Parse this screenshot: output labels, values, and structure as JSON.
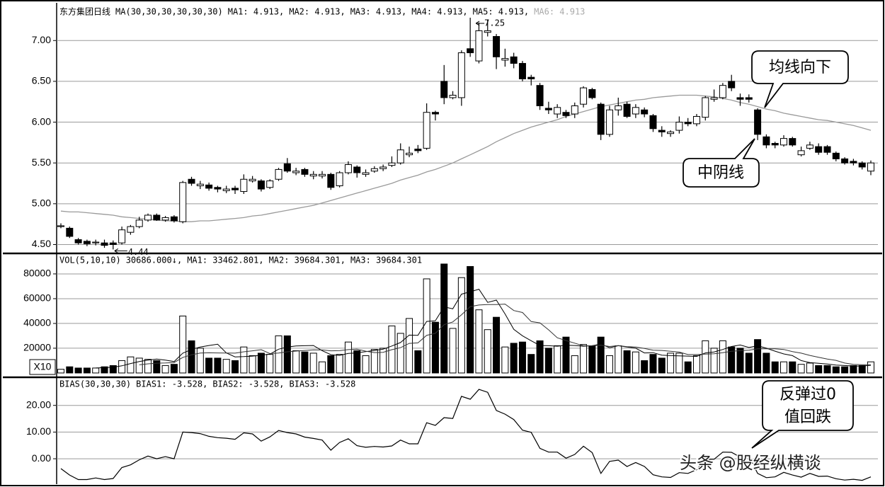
{
  "chart_data": [
    {
      "type": "candlestick",
      "header": [
        "东方集团日线",
        "MA(30,30,30,30,30,30)",
        "MA1: 4.913,",
        "MA2: 4.913,",
        "MA3: 4.913,",
        "MA4: 4.913,",
        "MA5: 4.913,",
        "MA6: 4.913"
      ],
      "open": [
        4.72,
        4.7,
        4.56,
        4.54,
        4.52,
        4.52,
        4.52,
        4.52,
        4.65,
        4.72,
        4.8,
        4.86,
        4.8,
        4.84,
        4.78,
        5.3,
        5.22,
        5.23,
        5.2,
        5.16,
        5.19,
        5.15,
        5.28,
        5.28,
        5.2,
        5.3,
        5.49,
        5.38,
        5.42,
        5.34,
        5.34,
        5.36,
        5.22,
        5.38,
        5.45,
        5.36,
        5.4,
        5.43,
        5.47,
        5.5,
        5.6,
        5.67,
        5.68,
        6.12,
        6.5,
        6.3,
        6.3,
        6.9,
        6.75,
        7.1,
        7.05,
        6.76,
        6.8,
        6.72,
        6.55,
        6.45,
        6.17,
        6.1,
        6.12,
        6.1,
        6.22,
        6.4,
        6.22,
        5.85,
        6.15,
        6.22,
        6.1,
        6.15,
        6.08,
        5.9,
        5.86,
        5.9,
        6.0,
        5.98,
        6.06,
        6.28,
        6.3,
        6.5,
        6.3,
        6.3,
        6.15,
        5.82,
        5.74,
        5.72,
        5.8,
        5.6,
        5.68,
        5.7,
        5.7,
        5.62,
        5.55,
        5.52,
        5.5,
        5.4
      ],
      "high": [
        4.76,
        4.72,
        4.58,
        4.56,
        4.56,
        4.56,
        4.55,
        4.72,
        4.74,
        4.84,
        4.88,
        4.88,
        4.85,
        4.86,
        5.28,
        5.33,
        5.28,
        5.26,
        5.22,
        5.22,
        5.22,
        5.36,
        5.34,
        5.3,
        5.3,
        5.44,
        5.56,
        5.44,
        5.44,
        5.4,
        5.4,
        5.38,
        5.4,
        5.52,
        5.47,
        5.42,
        5.46,
        5.48,
        5.58,
        5.74,
        5.7,
        5.72,
        6.23,
        6.14,
        6.7,
        6.38,
        6.88,
        7.28,
        7.22,
        7.25,
        7.08,
        6.9,
        6.85,
        6.75,
        6.58,
        6.48,
        6.25,
        6.22,
        6.15,
        6.24,
        6.44,
        6.42,
        6.24,
        6.2,
        6.3,
        6.25,
        6.22,
        6.18,
        6.1,
        5.95,
        5.9,
        6.07,
        6.05,
        6.1,
        6.32,
        6.4,
        6.48,
        6.58,
        6.35,
        6.34,
        6.17,
        5.85,
        5.76,
        5.84,
        5.82,
        5.7,
        5.76,
        5.74,
        5.72,
        5.64,
        5.57,
        5.55,
        5.52,
        5.53
      ],
      "low": [
        4.7,
        4.58,
        4.5,
        4.48,
        4.49,
        4.46,
        4.44,
        4.5,
        4.62,
        4.7,
        4.78,
        4.79,
        4.78,
        4.77,
        4.76,
        5.22,
        5.18,
        5.16,
        5.14,
        5.13,
        5.12,
        5.12,
        5.26,
        5.15,
        5.18,
        5.28,
        5.38,
        5.35,
        5.33,
        5.3,
        5.31,
        5.17,
        5.2,
        5.36,
        5.32,
        5.33,
        5.38,
        5.4,
        5.45,
        5.48,
        5.57,
        5.62,
        5.66,
        6.02,
        6.22,
        6.28,
        6.2,
        6.8,
        6.72,
        7.05,
        6.65,
        6.68,
        6.66,
        6.5,
        6.45,
        6.15,
        6.1,
        6.05,
        6.05,
        6.05,
        6.18,
        6.28,
        5.78,
        5.82,
        6.08,
        6.05,
        6.05,
        6.06,
        5.88,
        5.82,
        5.82,
        5.86,
        5.95,
        5.95,
        6.02,
        6.25,
        6.28,
        6.38,
        6.2,
        6.24,
        5.78,
        5.68,
        5.68,
        5.7,
        5.7,
        5.58,
        5.66,
        5.6,
        5.6,
        5.52,
        5.48,
        5.47,
        5.42,
        5.35
      ],
      "close": [
        4.73,
        4.6,
        4.52,
        4.51,
        4.53,
        4.49,
        4.5,
        4.68,
        4.72,
        4.8,
        4.86,
        4.8,
        4.83,
        4.79,
        5.26,
        5.25,
        5.24,
        5.19,
        5.18,
        5.18,
        5.17,
        5.3,
        5.3,
        5.18,
        5.28,
        5.42,
        5.4,
        5.4,
        5.36,
        5.36,
        5.36,
        5.2,
        5.38,
        5.48,
        5.38,
        5.38,
        5.43,
        5.45,
        5.5,
        5.66,
        5.62,
        5.65,
        6.12,
        6.1,
        6.3,
        6.33,
        6.85,
        6.85,
        7.12,
        7.12,
        6.8,
        6.78,
        6.72,
        6.53,
        6.53,
        6.2,
        6.15,
        6.18,
        6.08,
        6.2,
        6.42,
        6.3,
        5.85,
        6.15,
        6.2,
        6.07,
        6.18,
        6.1,
        5.92,
        5.88,
        5.88,
        6.0,
        5.98,
        6.07,
        6.3,
        6.3,
        6.45,
        6.42,
        6.28,
        6.28,
        5.85,
        5.72,
        5.72,
        5.8,
        5.72,
        5.65,
        5.72,
        5.63,
        5.63,
        5.55,
        5.5,
        5.5,
        5.45,
        5.5
      ],
      "ma": {
        "color": "#9a9a9a",
        "values": [
          4.91,
          4.9,
          4.9,
          4.89,
          4.88,
          4.87,
          4.86,
          4.84,
          4.83,
          4.82,
          4.81,
          4.8,
          4.79,
          4.79,
          4.78,
          4.78,
          4.79,
          4.79,
          4.8,
          4.81,
          4.82,
          4.83,
          4.85,
          4.86,
          4.88,
          4.9,
          4.92,
          4.94,
          4.96,
          4.98,
          5.01,
          5.04,
          5.07,
          5.1,
          5.13,
          5.16,
          5.19,
          5.22,
          5.25,
          5.29,
          5.32,
          5.35,
          5.39,
          5.42,
          5.46,
          5.5,
          5.55,
          5.6,
          5.65,
          5.7,
          5.76,
          5.81,
          5.86,
          5.9,
          5.94,
          5.97,
          6.0,
          6.03,
          6.07,
          6.1,
          6.13,
          6.16,
          6.19,
          6.21,
          6.23,
          6.25,
          6.27,
          6.28,
          6.3,
          6.31,
          6.32,
          6.33,
          6.33,
          6.33,
          6.32,
          6.31,
          6.29,
          6.27,
          6.24,
          6.22,
          6.19,
          6.16,
          6.14,
          6.11,
          6.09,
          6.07,
          6.05,
          6.03,
          6.02,
          6.0,
          5.98,
          5.96,
          5.93,
          5.9
        ]
      },
      "low_label": "4.44",
      "high_label": "7.25",
      "callouts": [
        "均线向下",
        "中阴线"
      ],
      "ylim": [
        4.4,
        7.41
      ],
      "yticks": [
        {
          "value": 4.5,
          "label": "4.50"
        },
        {
          "value": 5,
          "label": "5.00"
        },
        {
          "value": 5.5,
          "label": "5.50"
        },
        {
          "value": 6,
          "label": "6.00"
        },
        {
          "value": 6.5,
          "label": "6.50"
        },
        {
          "value": 7,
          "label": "7.00"
        }
      ],
      "grid": true
    },
    {
      "type": "volume",
      "header": [
        "VOL(5,10,10)",
        "30686.000↓,",
        "MA1: 33462.801,",
        "MA2: 39684.301,",
        "MA3: 39684.301"
      ],
      "unit_label": "X10",
      "values": [
        3000,
        5000,
        4000,
        4000,
        4000,
        5000,
        6000,
        10000,
        13000,
        12000,
        11000,
        10000,
        6000,
        7000,
        46000,
        26000,
        20000,
        12000,
        12000,
        11000,
        10000,
        21000,
        14000,
        16000,
        15000,
        30000,
        30000,
        18000,
        17000,
        16000,
        9000,
        14000,
        15000,
        25000,
        18000,
        14000,
        19000,
        20000,
        38000,
        32000,
        44000,
        18000,
        76000,
        41000,
        88000,
        36000,
        77000,
        86000,
        51000,
        35000,
        45000,
        21000,
        24000,
        25000,
        15000,
        26000,
        20000,
        22000,
        29000,
        14000,
        23000,
        22000,
        29000,
        14000,
        22000,
        18000,
        17000,
        10000,
        15000,
        12000,
        16000,
        16000,
        9000,
        14000,
        26000,
        20000,
        26000,
        21000,
        20000,
        16000,
        27000,
        16000,
        9000,
        9000,
        9000,
        7000,
        8000,
        6000,
        6000,
        5000,
        5000,
        6000,
        6000,
        9000
      ],
      "lines": [
        {
          "color": "#000000",
          "values": [
            null,
            null,
            null,
            null,
            4000,
            4400,
            4600,
            5800,
            7600,
            9200,
            10400,
            11200,
            10400,
            9200,
            16000,
            19000,
            21000,
            22200,
            23200,
            16200,
            13000,
            13200,
            13600,
            14400,
            15200,
            19200,
            21000,
            21800,
            22000,
            22200,
            18000,
            14800,
            14200,
            15800,
            16200,
            17200,
            18200,
            19200,
            21800,
            24600,
            30600,
            30400,
            41600,
            42200,
            53400,
            51800,
            63600,
            65600,
            67600,
            57000,
            58800,
            47600,
            35200,
            30000,
            26000,
            22200,
            22000,
            21600,
            22400,
            22200,
            21600,
            22000,
            23400,
            20400,
            22000,
            21000,
            20000,
            16200,
            16400,
            14400,
            14000,
            13800,
            13600,
            13400,
            16200,
            17000,
            19000,
            21400,
            22600,
            20600,
            22000,
            20000,
            17600,
            15400,
            14000,
            10000,
            8400,
            7800,
            7200,
            6400,
            6000,
            5600,
            5600,
            6200
          ]
        },
        {
          "color": "#333333",
          "values": [
            null,
            null,
            null,
            null,
            null,
            null,
            null,
            null,
            null,
            6600,
            7400,
            7900,
            8100,
            8400,
            12600,
            14700,
            16100,
            16300,
            16200,
            16100,
            16000,
            17100,
            17900,
            18800,
            15700,
            16100,
            17100,
            17700,
            18200,
            18700,
            18600,
            17900,
            18000,
            18900,
            19200,
            17600,
            16500,
            16700,
            18800,
            20400,
            23900,
            24300,
            30400,
            32000,
            39000,
            41200,
            47000,
            53600,
            54900,
            55200,
            55300,
            55600,
            50400,
            48800,
            41500,
            40500,
            34800,
            28400,
            26200,
            24100,
            21900,
            22000,
            22500,
            21400,
            22100,
            21300,
            21000,
            19800,
            18400,
            18200,
            17500,
            16900,
            14900,
            14900,
            15300,
            15500,
            16400,
            17500,
            18000,
            18400,
            19500,
            19500,
            19500,
            19000,
            17300,
            16000,
            14200,
            12700,
            11300,
            10200,
            8000,
            7000,
            6700,
            6700
          ]
        }
      ],
      "ylim": [
        -2900,
        95400
      ],
      "yticks": [
        20000,
        40000,
        60000,
        80000
      ],
      "grid": true
    },
    {
      "type": "line",
      "header": [
        "BIAS(30,30,30)",
        "BIAS1: -3.528,",
        "BIAS2: -3.528,",
        "BIAS3: -3.528"
      ],
      "color": "#000000",
      "values": [
        -3.7,
        -6.1,
        -7.8,
        -7.8,
        -7.2,
        -7.8,
        -7.4,
        -3.3,
        -2.3,
        -0.4,
        1.0,
        0,
        0.8,
        0,
        10.0,
        9.8,
        9.4,
        8.4,
        7.9,
        7.7,
        7.3,
        9.7,
        9.3,
        6.6,
        8.2,
        10.6,
        9.8,
        9.3,
        8.1,
        7.6,
        7.0,
        3.2,
        6.1,
        7.5,
        4.9,
        4.3,
        4.6,
        4.4,
        4.8,
        7.0,
        5.6,
        5.6,
        13.5,
        12.5,
        15.4,
        15.1,
        23.4,
        22.3,
        26.0,
        24.9,
        18.1,
        16.7,
        14.7,
        10.7,
        9.9,
        3.9,
        2.5,
        2.5,
        0.2,
        1.6,
        4.7,
        2.3,
        -5.5,
        -1.0,
        -0.5,
        -2.9,
        -1.4,
        -2.9,
        -6.0,
        -6.8,
        -7.0,
        -5.2,
        -5.5,
        -4.1,
        -0.3,
        -0.2,
        2.5,
        2.4,
        0.6,
        1.0,
        -5.5,
        -7.1,
        -6.8,
        -5.1,
        -6.1,
        -6.9,
        -5.5,
        -6.6,
        -6.5,
        -7.5,
        -8.0,
        -7.7,
        -8.1,
        -6.8
      ],
      "callout": [
        "反弹过0",
        "值回跌"
      ],
      "ylim": [
        -9,
        30
      ],
      "yticks": [
        {
          "value": 0,
          "label": "0.00"
        },
        {
          "value": 10,
          "label": "10.00"
        },
        {
          "value": 20,
          "label": "20.00"
        }
      ],
      "grid": true
    }
  ],
  "watermark": "头条 @股经纵横谈"
}
